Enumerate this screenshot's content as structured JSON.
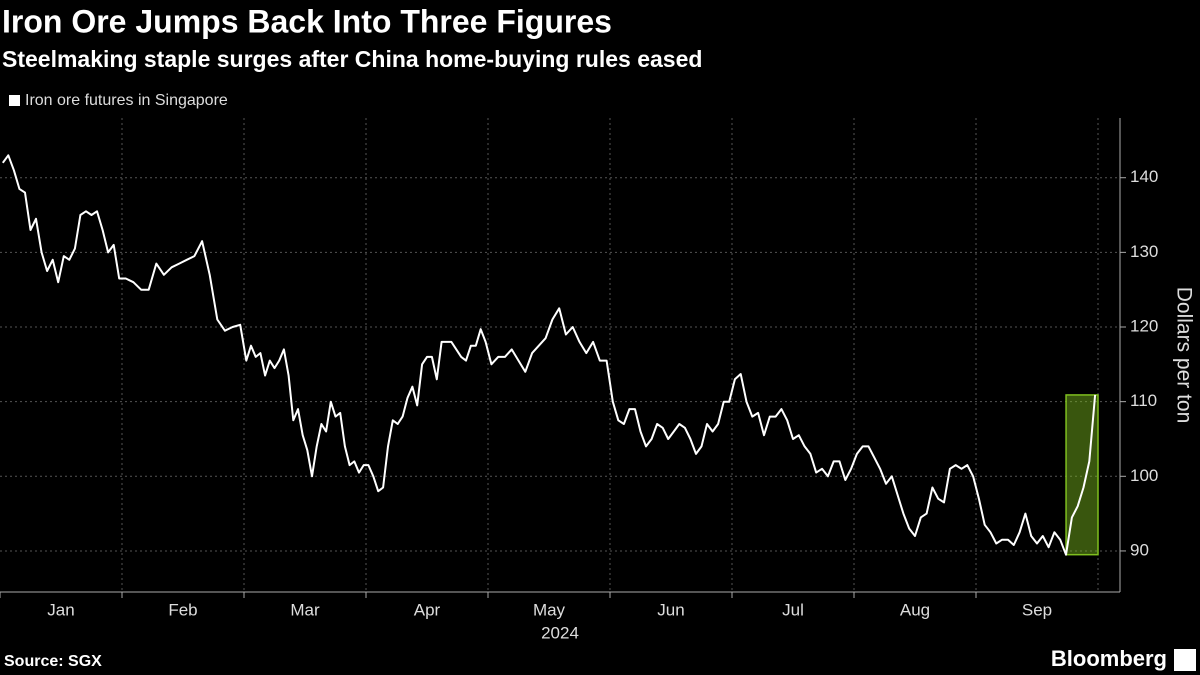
{
  "chart_data": {
    "type": "line",
    "title": "Iron Ore Jumps Back Into Three Figures",
    "subtitle": "Steelmaking staple surges after China home-buying rules eased",
    "y_label": "Dollars per ton",
    "x_year_label": "2024",
    "source": "Source: SGX",
    "brand": "Bloomberg",
    "grid": true,
    "legend_position": "top-left",
    "ylim": [
      84.5,
      148
    ],
    "yticks": [
      90,
      100,
      110,
      120,
      130,
      140
    ],
    "xticks": [
      {
        "value": "2024-01",
        "label": "Jan"
      },
      {
        "value": "2024-02",
        "label": "Feb"
      },
      {
        "value": "2024-03",
        "label": "Mar"
      },
      {
        "value": "2024-04",
        "label": "Apr"
      },
      {
        "value": "2024-05",
        "label": "May"
      },
      {
        "value": "2024-06",
        "label": "Jun"
      },
      {
        "value": "2024-07",
        "label": "Jul"
      },
      {
        "value": "2024-08",
        "label": "Aug"
      },
      {
        "value": "2024-09",
        "label": "Sep"
      }
    ],
    "highlight_color": "#7fbf1f",
    "x": [
      "2024-01",
      "2024-01",
      "2024-01",
      "2024-01",
      "2024-01",
      "2024-01",
      "2024-01",
      "2024-01",
      "2024-01",
      "2024-01",
      "2024-01",
      "2024-01",
      "2024-01",
      "2024-01",
      "2024-01",
      "2024-01",
      "2024-01",
      "2024-01",
      "2024-01",
      "2024-01",
      "2024-01",
      "2024-01",
      "2024-02",
      "2024-02",
      "2024-02",
      "2024-02",
      "2024-02",
      "2024-02",
      "2024-02",
      "2024-02",
      "2024-02",
      "2024-02",
      "2024-02",
      "2024-02",
      "2024-02",
      "2024-02",
      "2024-02",
      "2024-02",
      "2024-03",
      "2024-03",
      "2024-03",
      "2024-03",
      "2024-03",
      "2024-03",
      "2024-03",
      "2024-03",
      "2024-03",
      "2024-03",
      "2024-03",
      "2024-03",
      "2024-03",
      "2024-03",
      "2024-03",
      "2024-03",
      "2024-03",
      "2024-03",
      "2024-03",
      "2024-03",
      "2024-03",
      "2024-03",
      "2024-03",
      "2024-03",
      "2024-03",
      "2024-03",
      "2024-04",
      "2024-04",
      "2024-04",
      "2024-04",
      "2024-04",
      "2024-04",
      "2024-04",
      "2024-04",
      "2024-04",
      "2024-04",
      "2024-04",
      "2024-04",
      "2024-04",
      "2024-04",
      "2024-04",
      "2024-04",
      "2024-04",
      "2024-04",
      "2024-04",
      "2024-04",
      "2024-04",
      "2024-04",
      "2024-04",
      "2024-04",
      "2024-04",
      "2024-05",
      "2024-05",
      "2024-05",
      "2024-05",
      "2024-05",
      "2024-05",
      "2024-05",
      "2024-05",
      "2024-05",
      "2024-05",
      "2024-05",
      "2024-05",
      "2024-05",
      "2024-05",
      "2024-05",
      "2024-05",
      "2024-05",
      "2024-05",
      "2024-06",
      "2024-06",
      "2024-06",
      "2024-06",
      "2024-06",
      "2024-06",
      "2024-06",
      "2024-06",
      "2024-06",
      "2024-06",
      "2024-06",
      "2024-06",
      "2024-06",
      "2024-06",
      "2024-06",
      "2024-06",
      "2024-06",
      "2024-06",
      "2024-06",
      "2024-06",
      "2024-06",
      "2024-06",
      "2024-07",
      "2024-07",
      "2024-07",
      "2024-07",
      "2024-07",
      "2024-07",
      "2024-07",
      "2024-07",
      "2024-07",
      "2024-07",
      "2024-07",
      "2024-07",
      "2024-07",
      "2024-07",
      "2024-07",
      "2024-07",
      "2024-07",
      "2024-07",
      "2024-07",
      "2024-07",
      "2024-07",
      "2024-08",
      "2024-08",
      "2024-08",
      "2024-08",
      "2024-08",
      "2024-08",
      "2024-08",
      "2024-08",
      "2024-08",
      "2024-08",
      "2024-08",
      "2024-08",
      "2024-08",
      "2024-08",
      "2024-08",
      "2024-08",
      "2024-08",
      "2024-08",
      "2024-08",
      "2024-08",
      "2024-08",
      "2024-09",
      "2024-09",
      "2024-09",
      "2024-09",
      "2024-09",
      "2024-09",
      "2024-09",
      "2024-09",
      "2024-09",
      "2024-09",
      "2024-09",
      "2024-09",
      "2024-09",
      "2024-09",
      "2024-09",
      "2024-09",
      "2024-09",
      "2024-09",
      "2024-09",
      "2024-09",
      "2024-09"
    ],
    "series": [
      {
        "name": "Iron ore futures in Singapore",
        "color": "#ffffff",
        "values": [
          142,
          143,
          141,
          138.5,
          138,
          133,
          134.5,
          130,
          127.5,
          129,
          126,
          129.5,
          129,
          130.5,
          135,
          135.5,
          135,
          135.5,
          133,
          130,
          131,
          126.5,
          126.5,
          126,
          125,
          125,
          128.5,
          127,
          128,
          128.5,
          129,
          129.5,
          131.5,
          127,
          121,
          119.5,
          120,
          120.3,
          115.5,
          117.5,
          116,
          116.5,
          113.5,
          115.5,
          114.5,
          115.5,
          117,
          113.5,
          107.5,
          109,
          105.5,
          103.5,
          100,
          104,
          107,
          106,
          110,
          108,
          108.5,
          104,
          101.5,
          102,
          100.5,
          101.5,
          101.5,
          100,
          98,
          98.5,
          104,
          107.5,
          107,
          108,
          110.5,
          112,
          109.5,
          115,
          116,
          116,
          113,
          118,
          118,
          118,
          117,
          116,
          115.5,
          117.5,
          117.5,
          119.7,
          118,
          115,
          116,
          116,
          117,
          115.5,
          114,
          116.5,
          117.5,
          118.5,
          121,
          122.5,
          119,
          120,
          118,
          116.5,
          118,
          115.5,
          115.5,
          110,
          107.5,
          107,
          109,
          109,
          106,
          104,
          105,
          107,
          106.5,
          105,
          106,
          107,
          106.5,
          105,
          103,
          104,
          107,
          106,
          107,
          110,
          110,
          113,
          113.7,
          110,
          108,
          108.5,
          105.5,
          108,
          108,
          109,
          107.5,
          105,
          105.5,
          104,
          103,
          100.5,
          101,
          100,
          102,
          102,
          99.5,
          101,
          103,
          104,
          104,
          102.5,
          101,
          99,
          100,
          97.5,
          95,
          93,
          92,
          94.5,
          95,
          98.5,
          97,
          96.5,
          101,
          101.5,
          101,
          101.5,
          100,
          97,
          93.5,
          92.5,
          91,
          91.5,
          91.5,
          90.8,
          92.5,
          95,
          92,
          91,
          92,
          90.5,
          92.5,
          91.5,
          89.5,
          94.5,
          96,
          98.5,
          102,
          110.9
        ]
      }
    ]
  }
}
